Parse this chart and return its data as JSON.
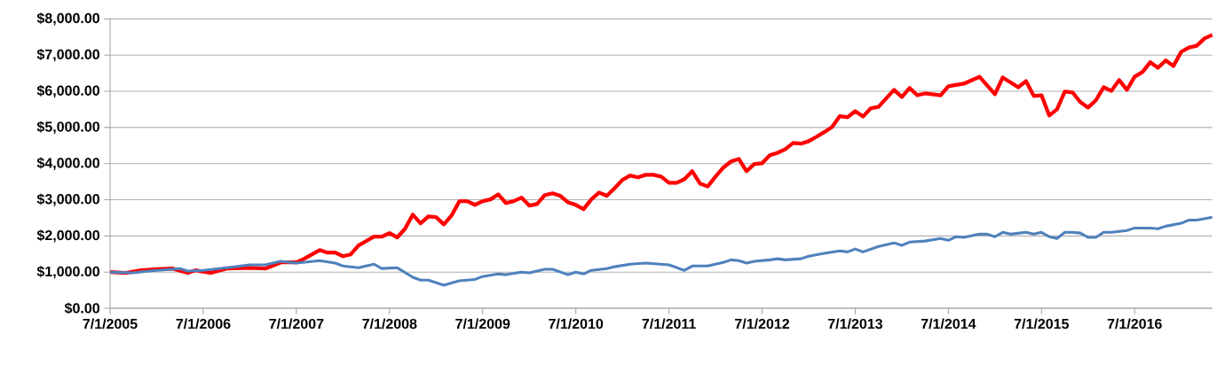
{
  "chart_data": {
    "type": "line",
    "xlim": [
      "2005-07",
      "2017-05"
    ],
    "xticks": [
      {
        "value": "2005-07-01",
        "label": "7/1/2005"
      },
      {
        "value": "2006-07-01",
        "label": "7/1/2006"
      },
      {
        "value": "2007-07-01",
        "label": "7/1/2007"
      },
      {
        "value": "2008-07-01",
        "label": "7/1/2008"
      },
      {
        "value": "2009-07-01",
        "label": "7/1/2009"
      },
      {
        "value": "2010-07-01",
        "label": "7/1/2010"
      },
      {
        "value": "2011-07-01",
        "label": "7/1/2011"
      },
      {
        "value": "2012-07-01",
        "label": "7/1/2012"
      },
      {
        "value": "2013-07-01",
        "label": "7/1/2013"
      },
      {
        "value": "2014-07-01",
        "label": "7/1/2014"
      },
      {
        "value": "2015-07-01",
        "label": "7/1/2015"
      },
      {
        "value": "2016-07-01",
        "label": "7/1/2016"
      }
    ],
    "ylim": [
      0,
      8000
    ],
    "yticks": [
      {
        "value": 0,
        "label": "$0.00"
      },
      {
        "value": 1000,
        "label": "$1,000.00"
      },
      {
        "value": 2000,
        "label": "$2,000.00"
      },
      {
        "value": 3000,
        "label": "$3,000.00"
      },
      {
        "value": 4000,
        "label": "$4,000.00"
      },
      {
        "value": 5000,
        "label": "$5,000.00"
      },
      {
        "value": 6000,
        "label": "$6,000.00"
      },
      {
        "value": 7000,
        "label": "$7,000.00"
      },
      {
        "value": 8000,
        "label": "$8,000.00"
      }
    ],
    "grid": "y",
    "series": [
      {
        "color": "#ff0000",
        "x": [
          "2005-07",
          "2005-09",
          "2005-11",
          "2006-01",
          "2006-03",
          "2006-05",
          "2006-06",
          "2006-08",
          "2006-10",
          "2007-01",
          "2007-03",
          "2007-05",
          "2007-07",
          "2007-08",
          "2007-10",
          "2007-11",
          "2007-12",
          "2008-01",
          "2008-02",
          "2008-03",
          "2008-05",
          "2008-06",
          "2008-07",
          "2008-08",
          "2008-09",
          "2008-10",
          "2008-11",
          "2008-12",
          "2009-01",
          "2009-02",
          "2009-03",
          "2009-04",
          "2009-05",
          "2009-06",
          "2009-07",
          "2009-08",
          "2009-09",
          "2009-10",
          "2009-11",
          "2009-12",
          "2010-01",
          "2010-02",
          "2010-03",
          "2010-04",
          "2010-05",
          "2010-06",
          "2010-07",
          "2010-08",
          "2010-09",
          "2010-10",
          "2010-11",
          "2010-12",
          "2011-01",
          "2011-02",
          "2011-03",
          "2011-04",
          "2011-05",
          "2011-06",
          "2011-07",
          "2011-08",
          "2011-09",
          "2011-10",
          "2011-11",
          "2011-12",
          "2012-01",
          "2012-02",
          "2012-03",
          "2012-04",
          "2012-05",
          "2012-06",
          "2012-07",
          "2012-08",
          "2012-09",
          "2012-10",
          "2012-11",
          "2012-12",
          "2013-01",
          "2013-02",
          "2013-03",
          "2013-04",
          "2013-05",
          "2013-06",
          "2013-07",
          "2013-08",
          "2013-09",
          "2013-10",
          "2013-12",
          "2014-01",
          "2014-02",
          "2014-03",
          "2014-04",
          "2014-06",
          "2014-07",
          "2014-09",
          "2014-11",
          "2015-01",
          "2015-02",
          "2015-04",
          "2015-05",
          "2015-06",
          "2015-07",
          "2015-08",
          "2015-09",
          "2015-10",
          "2015-11",
          "2015-12",
          "2016-01",
          "2016-02",
          "2016-03",
          "2016-04",
          "2016-05",
          "2016-06",
          "2016-07",
          "2016-08",
          "2016-09",
          "2016-10",
          "2016-11",
          "2016-12",
          "2017-01",
          "2017-02",
          "2017-03",
          "2017-04",
          "2017-05"
        ],
        "values": [
          1000,
          980,
          1050,
          1080,
          1100,
          980,
          1050,
          980,
          1100,
          1120,
          1100,
          1270,
          1270,
          1370,
          1610,
          1540,
          1540,
          1440,
          1490,
          1740,
          1980,
          1980,
          2080,
          1960,
          2200,
          2590,
          2350,
          2540,
          2520,
          2320,
          2570,
          2960,
          2960,
          2860,
          2960,
          3010,
          3150,
          2910,
          2960,
          3060,
          2840,
          2880,
          3130,
          3180,
          3110,
          2930,
          2860,
          2740,
          3010,
          3200,
          3110,
          3320,
          3550,
          3670,
          3620,
          3690,
          3690,
          3640,
          3470,
          3470,
          3570,
          3790,
          3450,
          3370,
          3640,
          3890,
          4060,
          4130,
          3790,
          3990,
          4010,
          4230,
          4300,
          4400,
          4570,
          4550,
          4620,
          4740,
          4870,
          5010,
          5310,
          5280,
          5450,
          5300,
          5530,
          5570,
          6040,
          5840,
          6090,
          5890,
          5940,
          5890,
          6140,
          6210,
          6400,
          5920,
          6380,
          6110,
          6280,
          5870,
          5890,
          5330,
          5500,
          5990,
          5970,
          5700,
          5550,
          5750,
          6110,
          6010,
          6310,
          6040,
          6400,
          6530,
          6800,
          6650,
          6850,
          6700,
          7090,
          7210,
          7260,
          7460,
          7560
        ]
      },
      {
        "color": "#4f81bd",
        "x": [
          "2005-07",
          "2005-10",
          "2005-12",
          "2006-04",
          "2006-05",
          "2006-07",
          "2006-10",
          "2007-01",
          "2007-03",
          "2007-05",
          "2007-07",
          "2007-10",
          "2007-12",
          "2008-01",
          "2008-03",
          "2008-05",
          "2008-06",
          "2008-08",
          "2008-10",
          "2008-11",
          "2008-12",
          "2009-02",
          "2009-04",
          "2009-06",
          "2009-07",
          "2009-09",
          "2009-10",
          "2009-12",
          "2010-01",
          "2010-03",
          "2010-04",
          "2010-06",
          "2010-07",
          "2010-08",
          "2010-09",
          "2010-11",
          "2010-12",
          "2011-02",
          "2011-04",
          "2011-07",
          "2011-09",
          "2011-10",
          "2011-12",
          "2012-02",
          "2012-03",
          "2012-04",
          "2012-05",
          "2012-06",
          "2012-08",
          "2012-09",
          "2012-10",
          "2012-12",
          "2013-01",
          "2013-03",
          "2013-05",
          "2013-06",
          "2013-07",
          "2013-08",
          "2013-10",
          "2013-12",
          "2014-01",
          "2014-02",
          "2014-04",
          "2014-06",
          "2014-07",
          "2014-08",
          "2014-09",
          "2014-11",
          "2014-12",
          "2015-01",
          "2015-02",
          "2015-03",
          "2015-05",
          "2015-06",
          "2015-07",
          "2015-08",
          "2015-09",
          "2015-10",
          "2015-11",
          "2015-12",
          "2016-01",
          "2016-02",
          "2016-03",
          "2016-04",
          "2016-06",
          "2016-07",
          "2016-09",
          "2016-10",
          "2016-11",
          "2017-01",
          "2017-02",
          "2017-03",
          "2017-05"
        ],
        "values": [
          1000,
          980,
          1030,
          1100,
          1030,
          1050,
          1120,
          1200,
          1200,
          1300,
          1250,
          1320,
          1250,
          1170,
          1120,
          1220,
          1100,
          1120,
          860,
          780,
          780,
          640,
          760,
          800,
          880,
          950,
          930,
          1000,
          980,
          1080,
          1080,
          930,
          1000,
          950,
          1050,
          1100,
          1150,
          1220,
          1250,
          1200,
          1050,
          1170,
          1170,
          1270,
          1340,
          1320,
          1250,
          1300,
          1340,
          1370,
          1340,
          1370,
          1440,
          1520,
          1590,
          1560,
          1640,
          1560,
          1710,
          1810,
          1740,
          1830,
          1860,
          1930,
          1880,
          1980,
          1960,
          2050,
          2050,
          1980,
          2100,
          2050,
          2100,
          2050,
          2100,
          1980,
          1930,
          2100,
          2100,
          2080,
          1960,
          1960,
          2100,
          2100,
          2150,
          2220,
          2220,
          2200,
          2270,
          2350,
          2440,
          2440,
          2520
        ]
      }
    ]
  }
}
